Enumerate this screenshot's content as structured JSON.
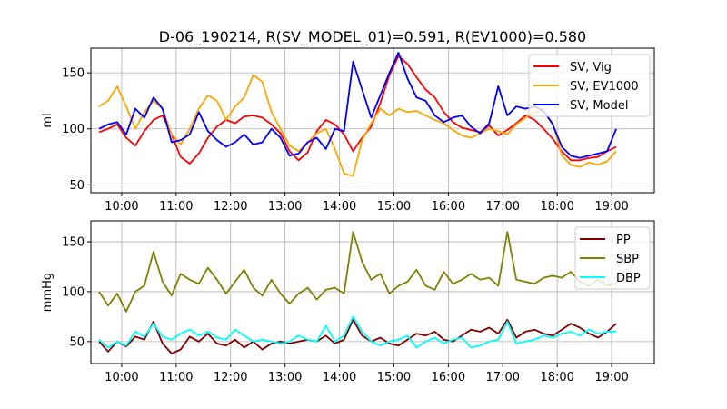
{
  "figure": {
    "title": "D-06_190214, R(SV_MODEL_01)=0.591, R(EV1000)=0.580"
  },
  "chart_data": [
    {
      "type": "line",
      "ylabel": "ml",
      "xlabel": "",
      "ylim": [
        43,
        172
      ],
      "xlim": [
        "09:26",
        "19:47"
      ],
      "x_ticks": [
        "10:00",
        "11:00",
        "12:00",
        "13:00",
        "14:00",
        "15:00",
        "16:00",
        "17:00",
        "18:00",
        "19:00"
      ],
      "y_ticks": [
        50,
        100,
        150
      ],
      "grid": true,
      "legend_position": "top-right",
      "series": [
        {
          "name": "SV, Vig",
          "color": "#ff0000",
          "x": [
            "09:35",
            "09:45",
            "09:55",
            "10:05",
            "10:15",
            "10:25",
            "10:35",
            "10:45",
            "10:55",
            "11:05",
            "11:15",
            "11:25",
            "11:35",
            "11:45",
            "11:55",
            "12:05",
            "12:15",
            "12:25",
            "12:35",
            "12:45",
            "12:55",
            "13:05",
            "13:15",
            "13:25",
            "13:35",
            "13:45",
            "13:55",
            "14:05",
            "14:15",
            "14:25",
            "14:35",
            "14:45",
            "14:55",
            "15:05",
            "15:15",
            "15:25",
            "15:35",
            "15:45",
            "15:55",
            "16:05",
            "16:15",
            "16:25",
            "16:35",
            "16:45",
            "16:55",
            "17:05",
            "17:15",
            "17:25",
            "17:35",
            "17:45",
            "17:55",
            "18:05",
            "18:15",
            "18:25",
            "18:35",
            "18:45",
            "18:55",
            "19:05"
          ],
          "values": [
            97,
            100,
            104,
            92,
            85,
            98,
            108,
            112,
            95,
            75,
            69,
            78,
            92,
            102,
            108,
            105,
            111,
            112,
            110,
            104,
            96,
            80,
            72,
            79,
            98,
            108,
            104,
            95,
            80,
            92,
            102,
            123,
            148,
            165,
            158,
            146,
            135,
            128,
            115,
            106,
            101,
            99,
            97,
            103,
            94,
            99,
            105,
            112,
            108,
            100,
            91,
            80,
            72,
            72,
            74,
            75,
            80,
            84
          ]
        },
        {
          "name": "SV, EV1000",
          "color": "#ffa500",
          "x": [
            "09:35",
            "09:45",
            "09:55",
            "10:05",
            "10:15",
            "10:25",
            "10:35",
            "10:45",
            "10:55",
            "11:05",
            "11:15",
            "11:25",
            "11:35",
            "11:45",
            "11:55",
            "12:05",
            "12:15",
            "12:25",
            "12:35",
            "12:45",
            "12:55",
            "13:05",
            "13:15",
            "13:25",
            "13:35",
            "13:45",
            "13:55",
            "14:05",
            "14:15",
            "14:25",
            "14:35",
            "14:45",
            "14:55",
            "15:05",
            "15:15",
            "15:25",
            "15:35",
            "15:45",
            "15:55",
            "16:05",
            "16:15",
            "16:25",
            "16:35",
            "16:45",
            "16:55",
            "17:05",
            "17:15",
            "17:25",
            "17:35",
            "17:45",
            "17:55",
            "18:05",
            "18:15",
            "18:25",
            "18:35",
            "18:45",
            "18:55",
            "19:05"
          ],
          "values": [
            120,
            125,
            138,
            120,
            100,
            115,
            125,
            118,
            95,
            86,
            100,
            118,
            130,
            125,
            108,
            120,
            128,
            148,
            142,
            115,
            100,
            85,
            80,
            88,
            96,
            100,
            82,
            60,
            58,
            90,
            105,
            118,
            112,
            118,
            115,
            116,
            112,
            108,
            105,
            99,
            94,
            92,
            96,
            100,
            98,
            95,
            104,
            110,
            115,
            116,
            105,
            76,
            68,
            66,
            70,
            68,
            71,
            80
          ]
        },
        {
          "name": "SV, Model",
          "color": "#0000ff",
          "x": [
            "09:35",
            "09:45",
            "09:55",
            "10:05",
            "10:15",
            "10:25",
            "10:35",
            "10:45",
            "10:55",
            "11:05",
            "11:15",
            "11:25",
            "11:35",
            "11:45",
            "11:55",
            "12:05",
            "12:15",
            "12:25",
            "12:35",
            "12:45",
            "12:55",
            "13:05",
            "13:15",
            "13:25",
            "13:35",
            "13:45",
            "13:55",
            "14:05",
            "14:15",
            "14:25",
            "14:35",
            "14:45",
            "14:55",
            "15:05",
            "15:15",
            "15:25",
            "15:35",
            "15:45",
            "15:55",
            "16:05",
            "16:15",
            "16:25",
            "16:35",
            "16:45",
            "16:55",
            "17:05",
            "17:15",
            "17:25",
            "17:35",
            "17:45",
            "17:55",
            "18:05",
            "18:15",
            "18:25",
            "18:35",
            "18:45",
            "18:55",
            "19:05"
          ],
          "values": [
            100,
            104,
            106,
            95,
            118,
            110,
            128,
            118,
            88,
            90,
            95,
            115,
            98,
            90,
            84,
            88,
            95,
            86,
            88,
            100,
            92,
            76,
            78,
            88,
            92,
            82,
            100,
            98,
            160,
            135,
            110,
            130,
            150,
            168,
            145,
            128,
            125,
            112,
            106,
            110,
            112,
            102,
            96,
            105,
            138,
            112,
            120,
            118,
            120,
            116,
            104,
            84,
            76,
            74,
            76,
            78,
            80,
            100
          ]
        }
      ]
    },
    {
      "type": "line",
      "ylabel": "mmHg",
      "xlabel": "",
      "ylim": [
        28,
        171
      ],
      "xlim": [
        "09:26",
        "19:47"
      ],
      "x_ticks": [
        "10:00",
        "11:00",
        "12:00",
        "13:00",
        "14:00",
        "15:00",
        "16:00",
        "17:00",
        "18:00",
        "19:00"
      ],
      "y_ticks": [
        50,
        100,
        150
      ],
      "grid": true,
      "legend_position": "top-right",
      "series": [
        {
          "name": "PP",
          "color": "#800000",
          "x": [
            "09:35",
            "09:45",
            "09:55",
            "10:05",
            "10:15",
            "10:25",
            "10:35",
            "10:45",
            "10:55",
            "11:05",
            "11:15",
            "11:25",
            "11:35",
            "11:45",
            "11:55",
            "12:05",
            "12:15",
            "12:25",
            "12:35",
            "12:45",
            "12:55",
            "13:05",
            "13:15",
            "13:25",
            "13:35",
            "13:45",
            "13:55",
            "14:05",
            "14:15",
            "14:25",
            "14:35",
            "14:45",
            "14:55",
            "15:05",
            "15:15",
            "15:25",
            "15:35",
            "15:45",
            "15:55",
            "16:05",
            "16:15",
            "16:25",
            "16:35",
            "16:45",
            "16:55",
            "17:05",
            "17:15",
            "17:25",
            "17:35",
            "17:45",
            "17:55",
            "18:05",
            "18:15",
            "18:25",
            "18:35",
            "18:45",
            "18:55",
            "19:05"
          ],
          "values": [
            50,
            40,
            50,
            45,
            55,
            52,
            70,
            48,
            38,
            42,
            55,
            50,
            58,
            48,
            46,
            52,
            44,
            50,
            42,
            48,
            50,
            48,
            50,
            52,
            50,
            56,
            48,
            52,
            72,
            56,
            50,
            54,
            48,
            46,
            52,
            58,
            56,
            60,
            52,
            50,
            56,
            62,
            60,
            64,
            58,
            72,
            54,
            60,
            62,
            58,
            56,
            62,
            68,
            64,
            58,
            54,
            60,
            68
          ]
        },
        {
          "name": "SBP",
          "color": "#808000",
          "x": [
            "09:35",
            "09:45",
            "09:55",
            "10:05",
            "10:15",
            "10:25",
            "10:35",
            "10:45",
            "10:55",
            "11:05",
            "11:15",
            "11:25",
            "11:35",
            "11:45",
            "11:55",
            "12:05",
            "12:15",
            "12:25",
            "12:35",
            "12:45",
            "12:55",
            "13:05",
            "13:15",
            "13:25",
            "13:35",
            "13:45",
            "13:55",
            "14:05",
            "14:15",
            "14:25",
            "14:35",
            "14:45",
            "14:55",
            "15:05",
            "15:15",
            "15:25",
            "15:35",
            "15:45",
            "15:55",
            "16:05",
            "16:15",
            "16:25",
            "16:35",
            "16:45",
            "16:55",
            "17:05",
            "17:15",
            "17:25",
            "17:35",
            "17:45",
            "17:55",
            "18:05",
            "18:15",
            "18:25",
            "18:35",
            "18:45",
            "18:55",
            "19:05"
          ],
          "values": [
            100,
            86,
            98,
            80,
            100,
            106,
            140,
            110,
            96,
            118,
            112,
            108,
            124,
            112,
            98,
            110,
            122,
            104,
            96,
            112,
            98,
            88,
            98,
            104,
            92,
            102,
            104,
            98,
            160,
            130,
            112,
            118,
            98,
            106,
            110,
            122,
            106,
            102,
            120,
            108,
            112,
            118,
            112,
            114,
            106,
            160,
            112,
            110,
            108,
            114,
            116,
            114,
            120,
            110,
            106,
            112,
            106,
            108
          ]
        },
        {
          "name": "DBP",
          "color": "#00ffff",
          "x": [
            "09:35",
            "09:45",
            "09:55",
            "10:05",
            "10:15",
            "10:25",
            "10:35",
            "10:45",
            "10:55",
            "11:05",
            "11:15",
            "11:25",
            "11:35",
            "11:45",
            "11:55",
            "12:05",
            "12:15",
            "12:25",
            "12:35",
            "12:45",
            "12:55",
            "13:05",
            "13:15",
            "13:25",
            "13:35",
            "13:45",
            "13:55",
            "14:05",
            "14:15",
            "14:25",
            "14:35",
            "14:45",
            "14:55",
            "15:05",
            "15:15",
            "15:25",
            "15:35",
            "15:45",
            "15:55",
            "16:05",
            "16:15",
            "16:25",
            "16:35",
            "16:45",
            "16:55",
            "17:05",
            "17:15",
            "17:25",
            "17:35",
            "17:45",
            "17:55",
            "18:05",
            "18:15",
            "18:25",
            "18:35",
            "18:45",
            "18:55",
            "19:05"
          ],
          "values": [
            52,
            44,
            50,
            46,
            60,
            55,
            68,
            55,
            52,
            58,
            62,
            56,
            60,
            54,
            52,
            62,
            56,
            50,
            52,
            50,
            48,
            50,
            56,
            52,
            50,
            66,
            50,
            56,
            75,
            60,
            50,
            46,
            50,
            52,
            56,
            44,
            50,
            54,
            48,
            52,
            54,
            44,
            46,
            50,
            52,
            70,
            48,
            50,
            52,
            56,
            54,
            58,
            60,
            56,
            62,
            58,
            60,
            60
          ]
        }
      ]
    }
  ]
}
